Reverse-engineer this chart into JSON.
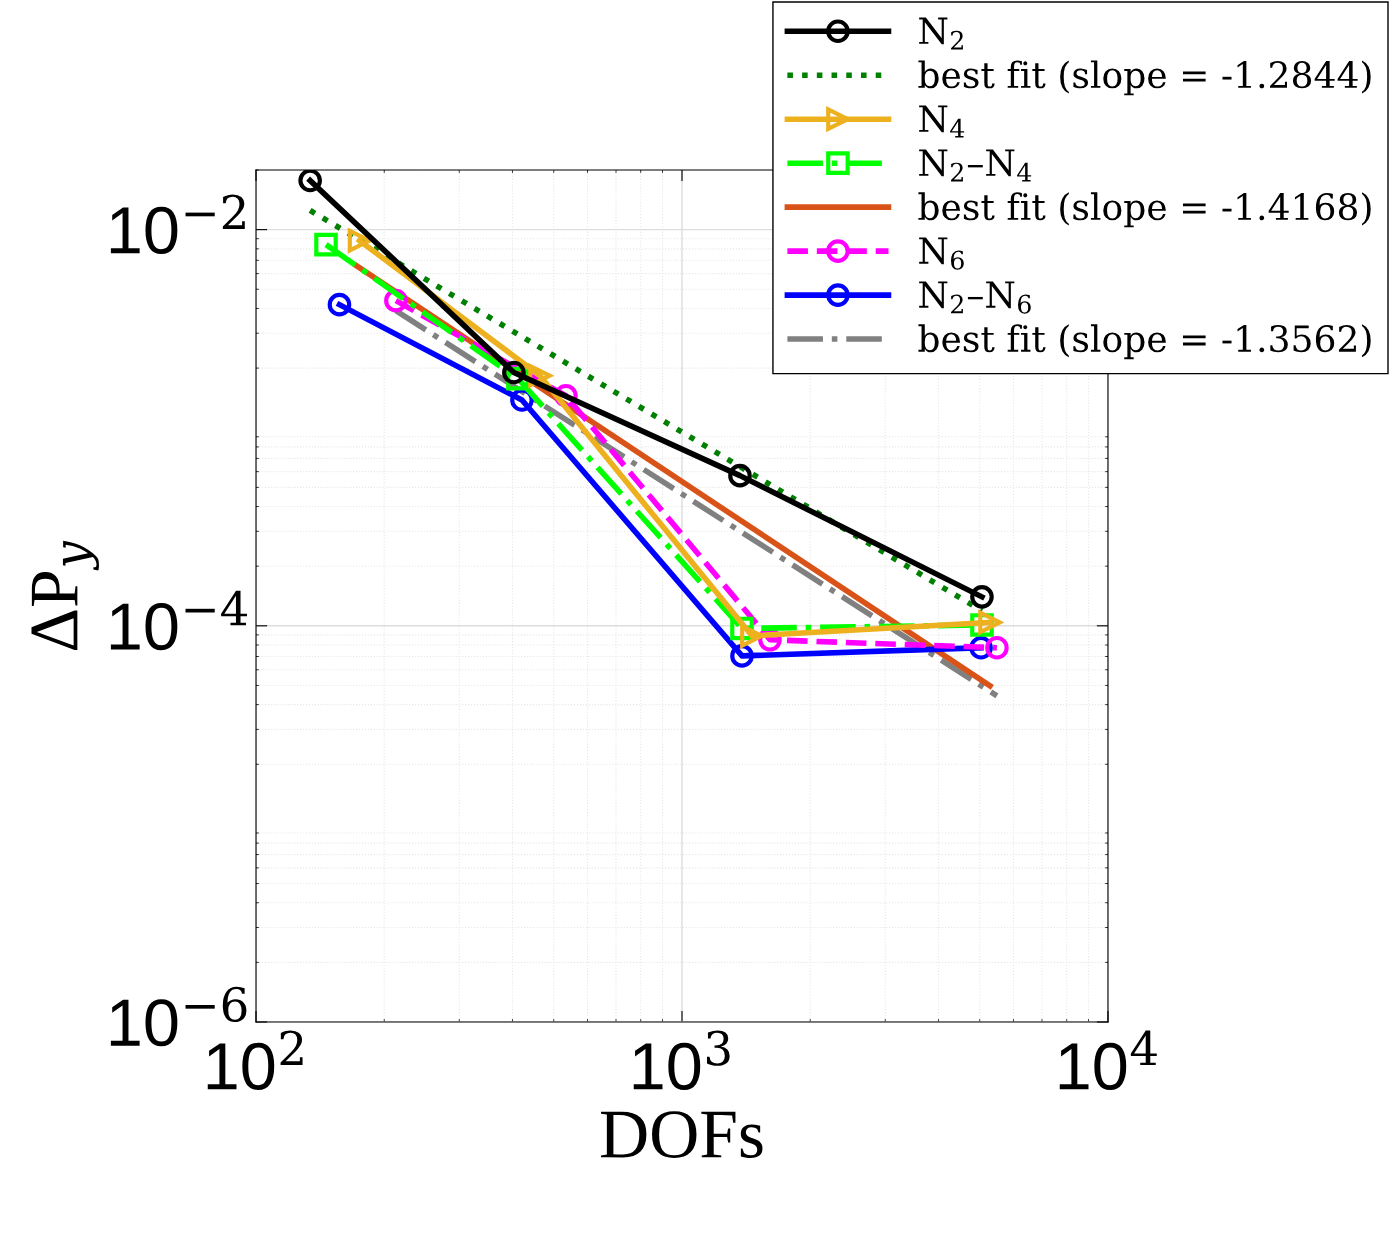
{
  "chart_data": {
    "type": "line",
    "xlabel": "DOFs",
    "ylabel": "ΔP$_{y}$",
    "log": "xy",
    "grid": true,
    "legend": "top right",
    "xlim": [
      100,
      10000
    ],
    "xticks": [
      {
        "value": 100,
        "label": "10$^{2}$"
      },
      {
        "value": 1000,
        "label": "10$^{3}$"
      },
      {
        "value": 10000,
        "label": "10$^{4}$"
      }
    ],
    "ylim": [
      1e-06,
      0.02
    ],
    "yticks": [
      {
        "value": 1e-06,
        "label": "10$^{−6}$"
      },
      {
        "value": 0.0001,
        "label": "10$^{−4}$"
      },
      {
        "value": 0.01,
        "label": "10$^{−2}$"
      }
    ],
    "series": [
      {
        "name": "N$_{2}$",
        "color": "#000000",
        "line_style": "solid",
        "marker": "circle",
        "x": [
          134,
          403,
          1368,
          5060
        ],
        "values": [
          0.0177,
          0.0019,
          0.000573,
          0.00014
        ]
      },
      {
        "name": "best fit (slope = -1.2844)",
        "color": "#008000",
        "line_style": "dotted",
        "marker": "none",
        "x": [
          134,
          5060
        ],
        "values": [
          0.0125,
          0.000119
        ]
      },
      {
        "name": "N$_{4}$",
        "color": "#edb120",
        "line_style": "solid",
        "marker": "triangle",
        "x": [
          175,
          464,
          1459,
          5284
        ],
        "values": [
          0.0088,
          0.00183,
          8.9e-05,
          0.000104
        ]
      },
      {
        "name": "N$_{2}$–N$_{4}$",
        "color": "#00ff00",
        "line_style": "dashdot",
        "marker": "square",
        "x": [
          146,
          412,
          1383,
          5060
        ],
        "values": [
          0.0084,
          0.00177,
          9.7e-05,
          0.000101
        ]
      },
      {
        "name": "best fit (slope = -1.4168)",
        "color": "#d95319",
        "line_style": "solid",
        "marker": "none",
        "x": [
          172,
          5284
        ],
        "values": [
          0.00658,
          4.98e-05
        ]
      },
      {
        "name": "N$_{6}$",
        "color": "#ff00ff",
        "line_style": "dashed",
        "marker": "circle",
        "x": [
          213,
          534,
          1609,
          5486
        ],
        "values": [
          0.00438,
          0.00145,
          8.5e-05,
          7.75e-05
        ]
      },
      {
        "name": "N$_{2}$–N$_{6}$",
        "color": "#0000ff",
        "line_style": "solid",
        "marker": "circle",
        "x": [
          157,
          421,
          1383,
          5035
        ],
        "values": [
          0.00418,
          0.00138,
          7.05e-05,
          7.75e-05
        ]
      },
      {
        "name": "best fit (slope = -1.3562)",
        "color": "#808080",
        "line_style": "dashdot",
        "marker": "none",
        "x": [
          213,
          5486
        ],
        "values": [
          0.0039,
          4.43e-05
        ]
      }
    ]
  }
}
